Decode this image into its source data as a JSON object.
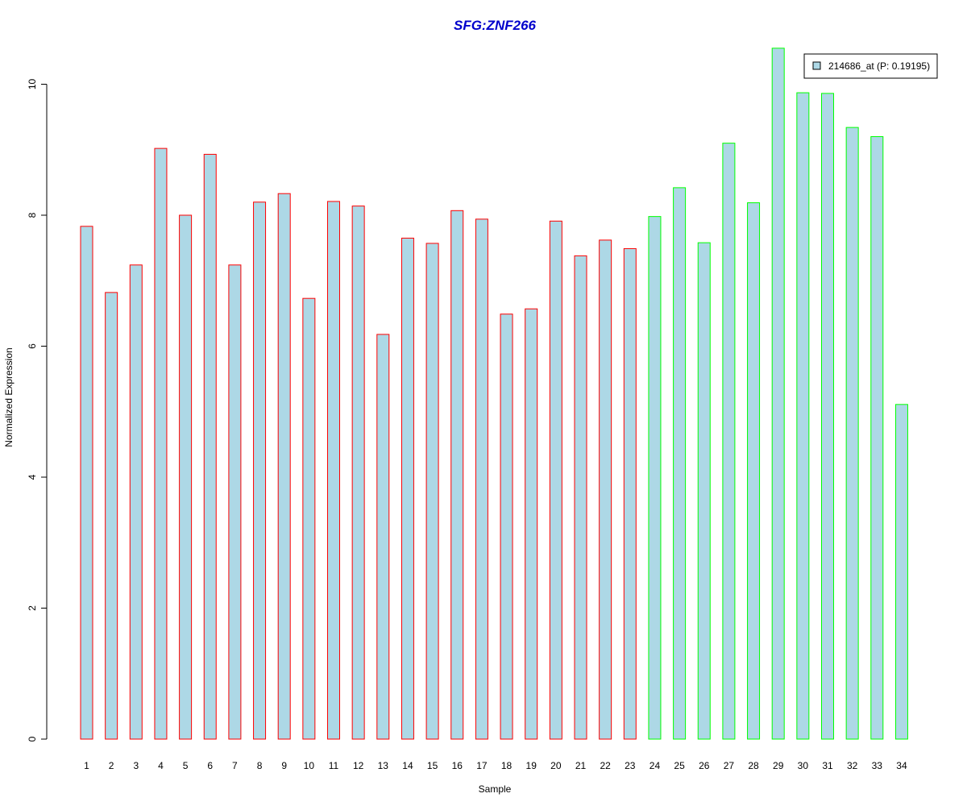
{
  "chart_data": {
    "type": "bar",
    "title": "SFG:ZNF266",
    "xlabel": "Sample",
    "ylabel": "Normalized Expression",
    "ylim": [
      0,
      10.6
    ],
    "yticks": [
      0,
      2,
      4,
      6,
      8,
      10
    ],
    "grid": false,
    "legend_position": "top-right",
    "categories": [
      "1",
      "2",
      "3",
      "4",
      "5",
      "6",
      "7",
      "8",
      "9",
      "10",
      "11",
      "12",
      "13",
      "14",
      "15",
      "16",
      "17",
      "18",
      "19",
      "20",
      "21",
      "22",
      "23",
      "24",
      "25",
      "26",
      "27",
      "28",
      "29",
      "30",
      "31",
      "32",
      "33",
      "34"
    ],
    "series": [
      {
        "name": "214686_at (P: 0.19195)",
        "values": [
          7.83,
          6.82,
          7.24,
          9.02,
          8.0,
          8.93,
          7.24,
          8.2,
          8.33,
          6.73,
          8.21,
          8.14,
          6.18,
          7.65,
          7.57,
          8.07,
          7.94,
          6.49,
          6.57,
          7.91,
          7.38,
          7.62,
          7.49,
          7.98,
          8.42,
          7.58,
          9.1,
          8.19,
          10.55,
          9.87,
          9.86,
          9.34,
          9.2,
          5.11
        ],
        "fill": "#add8e6",
        "groups": [
          "red",
          "red",
          "red",
          "red",
          "red",
          "red",
          "red",
          "red",
          "red",
          "red",
          "red",
          "red",
          "red",
          "red",
          "red",
          "red",
          "red",
          "red",
          "red",
          "red",
          "red",
          "red",
          "red",
          "green",
          "green",
          "green",
          "green",
          "green",
          "green",
          "green",
          "green",
          "green",
          "green",
          "green"
        ]
      }
    ],
    "colors": {
      "title": "#0000cc",
      "bar_fill": "#add8e6",
      "group_red": "#ff0000",
      "group_green": "#00ff00",
      "axis": "#000000"
    }
  }
}
